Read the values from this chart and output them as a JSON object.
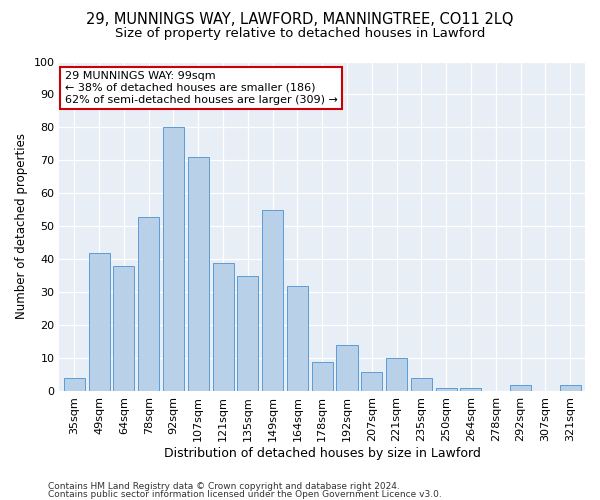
{
  "title1": "29, MUNNINGS WAY, LAWFORD, MANNINGTREE, CO11 2LQ",
  "title2": "Size of property relative to detached houses in Lawford",
  "xlabel": "Distribution of detached houses by size in Lawford",
  "ylabel": "Number of detached properties",
  "categories": [
    "35sqm",
    "49sqm",
    "64sqm",
    "78sqm",
    "92sqm",
    "107sqm",
    "121sqm",
    "135sqm",
    "149sqm",
    "164sqm",
    "178sqm",
    "192sqm",
    "207sqm",
    "221sqm",
    "235sqm",
    "250sqm",
    "264sqm",
    "278sqm",
    "292sqm",
    "307sqm",
    "321sqm"
  ],
  "values": [
    4,
    42,
    38,
    53,
    80,
    71,
    39,
    35,
    55,
    32,
    9,
    14,
    6,
    10,
    4,
    1,
    1,
    0,
    2,
    0,
    2
  ],
  "bar_color": "#b8d0e8",
  "bar_edge_color": "#5b9bd5",
  "annotation_line1": "29 MUNNINGS WAY: 99sqm",
  "annotation_line2": "← 38% of detached houses are smaller (186)",
  "annotation_line3": "62% of semi-detached houses are larger (309) →",
  "annotation_box_color": "#ffffff",
  "annotation_box_edge": "#cc0000",
  "footnote1": "Contains HM Land Registry data © Crown copyright and database right 2024.",
  "footnote2": "Contains public sector information licensed under the Open Government Licence v3.0.",
  "bg_color": "#ffffff",
  "plot_bg_color": "#e8eef5",
  "grid_color": "#ffffff",
  "ylim": [
    0,
    100
  ],
  "yticks": [
    0,
    10,
    20,
    30,
    40,
    50,
    60,
    70,
    80,
    90,
    100
  ],
  "title1_fontsize": 10.5,
  "title2_fontsize": 9.5,
  "xlabel_fontsize": 9,
  "ylabel_fontsize": 8.5,
  "tick_fontsize": 8,
  "annotation_fontsize": 8,
  "footnote_fontsize": 6.5
}
